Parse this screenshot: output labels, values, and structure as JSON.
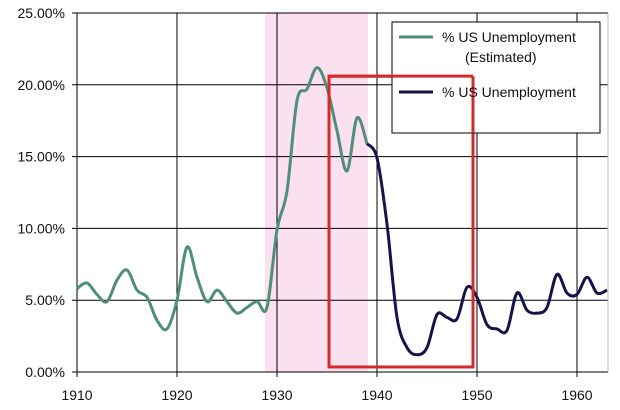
{
  "chart_data": {
    "type": "line",
    "title": "",
    "xlabel": "",
    "ylabel": "",
    "xlim": [
      1910,
      1963
    ],
    "ylim": [
      0,
      25
    ],
    "grid": true,
    "legend_placement": "top-right",
    "x_ticks": [
      "1910",
      "1920",
      "1930",
      "1940",
      "1950",
      "1960"
    ],
    "y_ticks": [
      "0.00%",
      "5.00%",
      "10.00%",
      "15.00%",
      "20.00%",
      "25.00%"
    ],
    "series": [
      {
        "name": "% US Unemployment (Estimated)",
        "legend_lines": [
          "% US Unemployment",
          "(Estimated)"
        ],
        "color": "#4f8f78",
        "x": [
          1910,
          1911,
          1912,
          1913,
          1914,
          1915,
          1916,
          1917,
          1918,
          1919,
          1920,
          1921,
          1922,
          1923,
          1924,
          1925,
          1926,
          1927,
          1928,
          1929,
          1930,
          1931,
          1932,
          1933,
          1934,
          1935,
          1936,
          1937,
          1938,
          1939
        ],
        "y": [
          5.8,
          6.2,
          5.4,
          4.9,
          6.4,
          7.1,
          5.7,
          5.2,
          3.6,
          3.0,
          5.0,
          8.7,
          6.6,
          4.9,
          5.7,
          4.9,
          4.1,
          4.5,
          4.9,
          4.5,
          9.9,
          12.6,
          18.9,
          19.7,
          21.2,
          19.8,
          16.8,
          14.0,
          17.7,
          15.9
        ]
      },
      {
        "name": "% US Unemployment",
        "legend_lines": [
          "% US Unemployment"
        ],
        "color": "#14144a",
        "x": [
          1939,
          1940,
          1941,
          1942,
          1943,
          1944,
          1945,
          1946,
          1947,
          1948,
          1949,
          1950,
          1951,
          1952,
          1953,
          1954,
          1955,
          1956,
          1957,
          1958,
          1959,
          1960,
          1961,
          1962,
          1963
        ],
        "y": [
          15.9,
          14.9,
          10.3,
          3.8,
          1.7,
          1.2,
          1.7,
          4.0,
          3.8,
          3.7,
          5.9,
          5.2,
          3.3,
          3.0,
          2.9,
          5.5,
          4.3,
          4.1,
          4.5,
          6.8,
          5.5,
          5.4,
          6.6,
          5.5,
          5.7
        ]
      }
    ],
    "annotations": [
      {
        "type": "shaded-band",
        "x_range": [
          1928.8,
          1939.1
        ],
        "color": "#fbe0f0"
      },
      {
        "type": "rectangle",
        "x_range": [
          1935.2,
          1949.6
        ],
        "y_range": [
          0.35,
          20.6
        ],
        "color": "#d42a2a"
      }
    ]
  }
}
